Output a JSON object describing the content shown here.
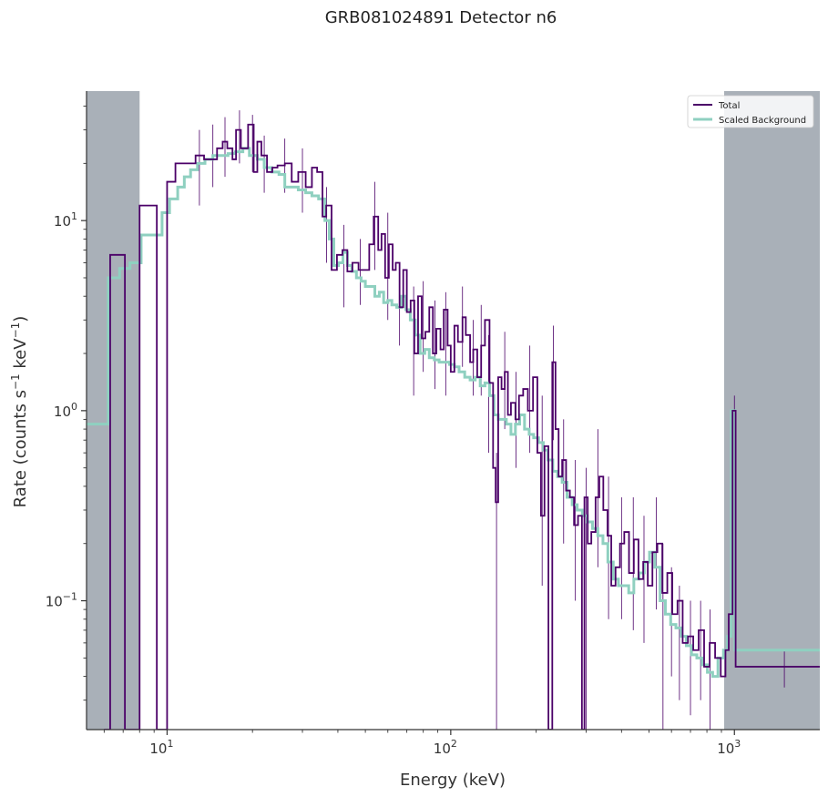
{
  "chart_data": {
    "type": "line",
    "title": "GRB081024891 Detector n6",
    "xlabel": "Energy (keV)",
    "ylabel_prefix": "Rate (counts s",
    "ylabel_mid": " keV",
    "ylabel_suffix": ")",
    "ylabel_exp": "−1",
    "xscale": "log",
    "yscale": "log",
    "xlim": [
      5.2,
      2000
    ],
    "ylim": [
      0.021,
      48
    ],
    "x_ticks": [
      {
        "value": 10,
        "base": "10",
        "exp": "1"
      },
      {
        "value": 100,
        "base": "10",
        "exp": "2"
      },
      {
        "value": 1000,
        "base": "10",
        "exp": "3"
      }
    ],
    "y_ticks": [
      {
        "value": 0.1,
        "base": "10",
        "exp": "−1"
      },
      {
        "value": 1,
        "base": "10",
        "exp": "0"
      },
      {
        "value": 10,
        "base": "10",
        "exp": "1"
      }
    ],
    "excluded_regions": [
      {
        "from": 5.2,
        "to": 8.0
      },
      {
        "from": 920,
        "to": 2000
      }
    ],
    "legend": {
      "position": "top-right"
    },
    "series": [
      {
        "name": "Total",
        "color": "#4b0068",
        "points": [
          [
            6.0,
            0.021
          ],
          [
            6.3,
            6.6
          ],
          [
            6.8,
            6.6
          ],
          [
            7.1,
            0.021
          ],
          [
            8.0,
            12.0
          ],
          [
            8.9,
            12.0
          ],
          [
            9.2,
            0.021
          ],
          [
            9.8,
            0.021
          ],
          [
            10.0,
            16.0
          ],
          [
            10.7,
            20.0
          ],
          [
            11.8,
            20.0
          ],
          [
            12.6,
            22.0
          ],
          [
            13.5,
            21.0
          ],
          [
            14.2,
            21.0
          ],
          [
            15.0,
            24.0
          ],
          [
            15.7,
            26.0
          ],
          [
            16.3,
            24.0
          ],
          [
            17.0,
            21.0
          ],
          [
            17.5,
            30.0
          ],
          [
            18.2,
            24.0
          ],
          [
            19.3,
            32.0
          ],
          [
            20.2,
            18.0
          ],
          [
            20.8,
            26.0
          ],
          [
            21.5,
            22.0
          ],
          [
            22.5,
            18.0
          ],
          [
            23.5,
            19.0
          ],
          [
            24.5,
            19.5
          ],
          [
            26.0,
            20.0
          ],
          [
            27.5,
            16.0
          ],
          [
            29.0,
            18.0
          ],
          [
            30.8,
            15.0
          ],
          [
            32.4,
            19.0
          ],
          [
            33.8,
            18.0
          ],
          [
            35.3,
            10.5
          ],
          [
            36.4,
            12.0
          ],
          [
            38.0,
            5.5
          ],
          [
            39.7,
            6.6
          ],
          [
            41.5,
            7.0
          ],
          [
            43.2,
            5.4
          ],
          [
            45.0,
            6.0
          ],
          [
            47.3,
            5.5
          ],
          [
            49.5,
            5.5
          ],
          [
            51.6,
            7.5
          ],
          [
            53.5,
            10.5
          ],
          [
            55.5,
            7.0
          ],
          [
            57.0,
            8.5
          ],
          [
            58.7,
            5.0
          ],
          [
            60.5,
            7.5
          ],
          [
            62.4,
            5.5
          ],
          [
            64.0,
            6.0
          ],
          [
            66.0,
            3.5
          ],
          [
            68.0,
            5.5
          ],
          [
            70.0,
            3.3
          ],
          [
            72.2,
            3.8
          ],
          [
            74.4,
            2.0
          ],
          [
            76.7,
            4.0
          ],
          [
            79.0,
            2.4
          ],
          [
            81.4,
            2.6
          ],
          [
            84.0,
            3.5
          ],
          [
            86.5,
            2.0
          ],
          [
            89.0,
            2.7
          ],
          [
            92.0,
            2.1
          ],
          [
            94.5,
            3.4
          ],
          [
            97.5,
            2.2
          ],
          [
            100.0,
            1.6
          ],
          [
            103.0,
            2.8
          ],
          [
            106.0,
            2.3
          ],
          [
            110.0,
            3.1
          ],
          [
            113.0,
            2.5
          ],
          [
            117.0,
            1.8
          ],
          [
            120.0,
            2.1
          ],
          [
            124.0,
            1.5
          ],
          [
            128.0,
            2.2
          ],
          [
            132.0,
            3.0
          ],
          [
            137.0,
            1.4
          ],
          [
            141.0,
            0.5
          ],
          [
            144.0,
            0.33
          ],
          [
            147.0,
            1.5
          ],
          [
            151.0,
            1.3
          ],
          [
            155.0,
            1.6
          ],
          [
            159.0,
            0.95
          ],
          [
            163.0,
            1.1
          ],
          [
            169.0,
            0.9
          ],
          [
            174.0,
            1.2
          ],
          [
            180.0,
            1.3
          ],
          [
            187.0,
            1.0
          ],
          [
            195.0,
            1.5
          ],
          [
            202.0,
            0.6
          ],
          [
            208.0,
            0.28
          ],
          [
            214.0,
            0.65
          ],
          [
            221.0,
            0.021
          ],
          [
            226.0,
            0.021
          ],
          [
            228.0,
            1.8
          ],
          [
            234.0,
            0.8
          ],
          [
            240.0,
            0.45
          ],
          [
            247.0,
            0.55
          ],
          [
            255.0,
            0.38
          ],
          [
            263.0,
            0.35
          ],
          [
            272.0,
            0.25
          ],
          [
            281.0,
            0.28
          ],
          [
            290.0,
            0.021
          ],
          [
            296.0,
            0.35
          ],
          [
            304.0,
            0.2
          ],
          [
            313.0,
            0.23
          ],
          [
            324.0,
            0.35
          ],
          [
            334.0,
            0.45
          ],
          [
            345.0,
            0.3
          ],
          [
            357.0,
            0.22
          ],
          [
            368.0,
            0.12
          ],
          [
            381.0,
            0.15
          ],
          [
            395.0,
            0.2
          ],
          [
            409.0,
            0.23
          ],
          [
            425.0,
            0.14
          ],
          [
            442.0,
            0.21
          ],
          [
            459.0,
            0.13
          ],
          [
            477.0,
            0.16
          ],
          [
            495.0,
            0.12
          ],
          [
            514.0,
            0.18
          ],
          [
            535.0,
            0.2
          ],
          [
            557.0,
            0.11
          ],
          [
            580.0,
            0.14
          ],
          [
            604.0,
            0.085
          ],
          [
            630.0,
            0.1
          ],
          [
            657.0,
            0.06
          ],
          [
            686.0,
            0.065
          ],
          [
            716.0,
            0.055
          ],
          [
            748.0,
            0.07
          ],
          [
            782.0,
            0.045
          ],
          [
            818.0,
            0.06
          ],
          [
            855.0,
            0.05
          ],
          [
            895.0,
            0.04
          ],
          [
            930.0,
            0.055
          ],
          [
            955.0,
            0.085
          ],
          [
            985.0,
            1.0
          ],
          [
            1010.0,
            0.045
          ],
          [
            2000.0,
            0.045
          ]
        ]
      },
      {
        "name": "Scaled  Background",
        "color": "#8fd0c0",
        "points": [
          [
            5.2,
            0.85
          ],
          [
            6.0,
            0.85
          ],
          [
            6.2,
            5.0
          ],
          [
            6.8,
            5.6
          ],
          [
            7.4,
            6.0
          ],
          [
            8.1,
            8.4
          ],
          [
            9.0,
            8.4
          ],
          [
            9.6,
            11.0
          ],
          [
            10.2,
            13.0
          ],
          [
            10.9,
            15.0
          ],
          [
            11.5,
            17.0
          ],
          [
            12.1,
            18.5
          ],
          [
            12.8,
            20.0
          ],
          [
            13.6,
            21.0
          ],
          [
            14.5,
            22.0
          ],
          [
            15.4,
            22.0
          ],
          [
            16.4,
            22.5
          ],
          [
            17.4,
            23.0
          ],
          [
            18.5,
            24.0
          ],
          [
            19.5,
            22.0
          ],
          [
            20.8,
            21.0
          ],
          [
            22.0,
            19.0
          ],
          [
            23.4,
            18.0
          ],
          [
            24.8,
            17.5
          ],
          [
            26.0,
            15.0
          ],
          [
            27.5,
            15.0
          ],
          [
            29.0,
            14.5
          ],
          [
            30.8,
            14.0
          ],
          [
            32.4,
            13.5
          ],
          [
            34.2,
            13.0
          ],
          [
            36.0,
            10.0
          ],
          [
            37.3,
            8.0
          ],
          [
            38.7,
            5.8
          ],
          [
            40.2,
            6.0
          ],
          [
            41.7,
            6.8
          ],
          [
            43.2,
            5.8
          ],
          [
            44.8,
            5.4
          ],
          [
            46.5,
            5.0
          ],
          [
            48.3,
            4.8
          ],
          [
            50.0,
            4.5
          ],
          [
            52.0,
            4.5
          ],
          [
            54.0,
            4.0
          ],
          [
            56.0,
            4.2
          ],
          [
            58.0,
            3.7
          ],
          [
            60.0,
            3.8
          ],
          [
            62.0,
            3.6
          ],
          [
            64.5,
            3.5
          ],
          [
            67.0,
            4.0
          ],
          [
            69.5,
            3.4
          ],
          [
            72.0,
            3.0
          ],
          [
            75.0,
            2.5
          ],
          [
            78.0,
            2.0
          ],
          [
            81.0,
            2.1
          ],
          [
            84.0,
            1.9
          ],
          [
            87.5,
            1.85
          ],
          [
            91.0,
            1.8
          ],
          [
            95.0,
            1.8
          ],
          [
            99.0,
            1.75
          ],
          [
            103.0,
            1.7
          ],
          [
            107.0,
            1.6
          ],
          [
            112.0,
            1.5
          ],
          [
            117.0,
            1.45
          ],
          [
            122.0,
            1.5
          ],
          [
            127.0,
            1.35
          ],
          [
            132.0,
            1.4
          ],
          [
            137.0,
            1.2
          ],
          [
            142.0,
            0.95
          ],
          [
            147.0,
            0.9
          ],
          [
            152.0,
            0.9
          ],
          [
            157.0,
            0.85
          ],
          [
            163.0,
            0.75
          ],
          [
            169.0,
            0.85
          ],
          [
            175.0,
            0.95
          ],
          [
            182.0,
            0.8
          ],
          [
            189.0,
            0.75
          ],
          [
            196.0,
            0.72
          ],
          [
            204.0,
            0.68
          ],
          [
            212.0,
            0.62
          ],
          [
            220.0,
            0.55
          ],
          [
            229.0,
            0.48
          ],
          [
            238.0,
            0.45
          ],
          [
            247.0,
            0.42
          ],
          [
            257.0,
            0.35
          ],
          [
            268.0,
            0.32
          ],
          [
            279.0,
            0.3
          ],
          [
            291.0,
            0.28
          ],
          [
            303.0,
            0.26
          ],
          [
            316.0,
            0.24
          ],
          [
            330.0,
            0.22
          ],
          [
            344.0,
            0.2
          ],
          [
            358.0,
            0.16
          ],
          [
            374.0,
            0.13
          ],
          [
            390.0,
            0.12
          ],
          [
            406.0,
            0.12
          ],
          [
            424.0,
            0.11
          ],
          [
            442.0,
            0.13
          ],
          [
            461.0,
            0.14
          ],
          [
            481.0,
            0.16
          ],
          [
            502.0,
            0.18
          ],
          [
            524.0,
            0.15
          ],
          [
            547.0,
            0.1
          ],
          [
            571.0,
            0.085
          ],
          [
            596.0,
            0.075
          ],
          [
            622.0,
            0.072
          ],
          [
            649.0,
            0.065
          ],
          [
            677.0,
            0.058
          ],
          [
            706.0,
            0.052
          ],
          [
            737.0,
            0.05
          ],
          [
            769.0,
            0.046
          ],
          [
            803.0,
            0.042
          ],
          [
            838.0,
            0.04
          ],
          [
            875.0,
            0.05
          ],
          [
            915.0,
            0.055
          ],
          [
            945.0,
            0.065
          ],
          [
            975.0,
            1.0
          ],
          [
            1005.0,
            0.055
          ],
          [
            2000.0,
            0.055
          ]
        ]
      }
    ],
    "error_bars": [
      [
        13.0,
        12.0,
        30.0
      ],
      [
        14.5,
        15.0,
        32.0
      ],
      [
        16.0,
        17.0,
        35.0
      ],
      [
        18.0,
        20.0,
        38.0
      ],
      [
        20.0,
        18.0,
        36.0
      ],
      [
        22.0,
        14.0,
        28.0
      ],
      [
        26.0,
        14.0,
        27.0
      ],
      [
        30.0,
        11.0,
        24.0
      ],
      [
        36.5,
        6.0,
        15.0
      ],
      [
        42.0,
        3.5,
        9.5
      ],
      [
        48.0,
        3.6,
        8.0
      ],
      [
        54.0,
        5.5,
        16.0
      ],
      [
        60.0,
        3.0,
        11.0
      ],
      [
        66.0,
        2.2,
        6.0
      ],
      [
        74.0,
        1.2,
        4.5
      ],
      [
        80.0,
        1.6,
        4.8
      ],
      [
        88.0,
        1.3,
        3.8
      ],
      [
        96.0,
        1.2,
        4.2
      ],
      [
        110.0,
        1.7,
        4.5
      ],
      [
        120.0,
        1.2,
        3.0
      ],
      [
        128.0,
        1.2,
        3.6
      ],
      [
        136.0,
        0.6,
        2.5
      ],
      [
        145.0,
        0.021,
        0.6
      ],
      [
        155.0,
        0.8,
        2.6
      ],
      [
        170.0,
        0.5,
        1.6
      ],
      [
        190.0,
        0.6,
        2.2
      ],
      [
        210.0,
        0.12,
        1.2
      ],
      [
        230.0,
        0.7,
        2.8
      ],
      [
        250.0,
        0.2,
        0.9
      ],
      [
        275.0,
        0.1,
        0.55
      ],
      [
        300.0,
        0.021,
        0.5
      ],
      [
        330.0,
        0.15,
        0.8
      ],
      [
        360.0,
        0.08,
        0.45
      ],
      [
        400.0,
        0.08,
        0.35
      ],
      [
        440.0,
        0.07,
        0.35
      ],
      [
        480.0,
        0.06,
        0.28
      ],
      [
        530.0,
        0.09,
        0.35
      ],
      [
        560.0,
        0.021,
        0.2
      ],
      [
        600.0,
        0.04,
        0.15
      ],
      [
        640.0,
        0.03,
        0.12
      ],
      [
        700.0,
        0.025,
        0.1
      ],
      [
        760.0,
        0.03,
        0.1
      ],
      [
        820.0,
        0.021,
        0.09
      ],
      [
        1000.0,
        0.9,
        1.2
      ],
      [
        1500.0,
        0.035,
        0.055
      ]
    ]
  }
}
